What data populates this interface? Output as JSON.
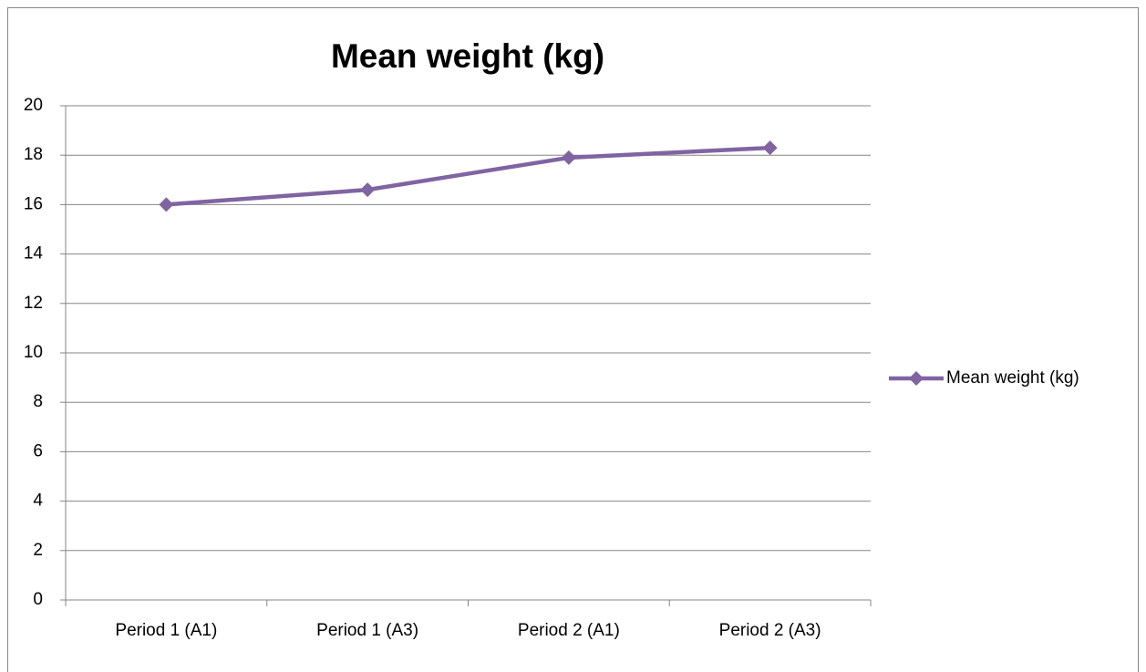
{
  "chart_data": {
    "type": "line",
    "title": "Mean weight (kg)",
    "categories": [
      "Period 1 (A1)",
      "Period 1 (A3)",
      "Period 2 (A1)",
      "Period 2 (A3)"
    ],
    "series": [
      {
        "name": "Mean weight (kg)",
        "color": "#8064a2",
        "values": [
          16.0,
          16.6,
          17.9,
          18.3
        ]
      }
    ],
    "ylim": [
      0,
      20
    ],
    "yticks": [
      0,
      2,
      4,
      6,
      8,
      10,
      12,
      14,
      16,
      18,
      20
    ],
    "grid": true,
    "legend": "right"
  }
}
